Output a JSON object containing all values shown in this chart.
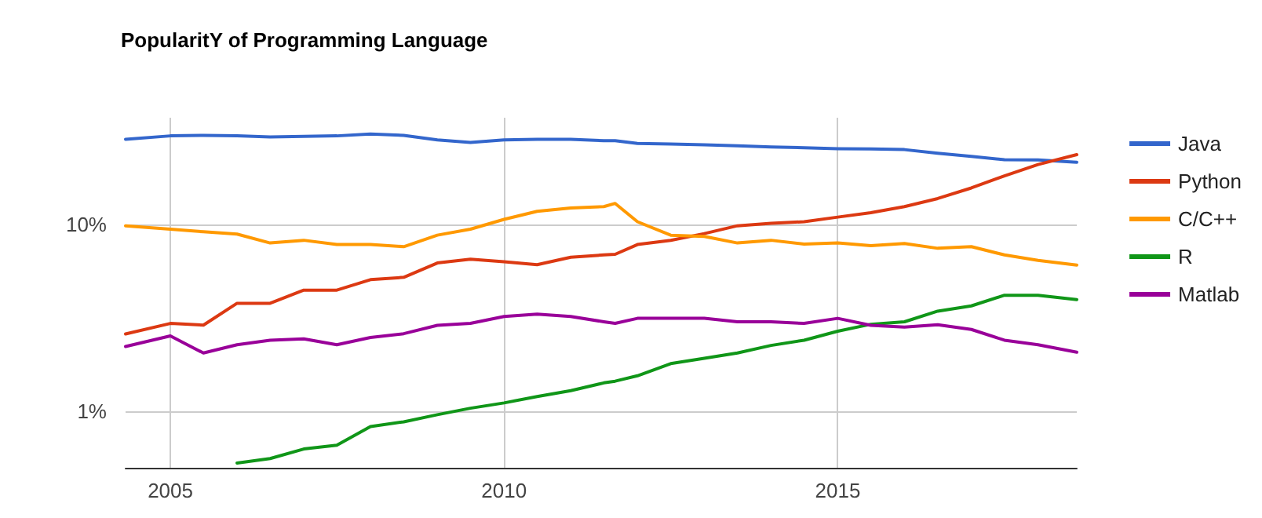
{
  "chart_data": {
    "type": "line",
    "title": "PopularitY of Programming Language",
    "x": [
      "2004-05",
      "2005-01",
      "2005-07",
      "2006-01",
      "2006-07",
      "2007-01",
      "2007-07",
      "2008-01",
      "2008-07",
      "2009-01",
      "2009-07",
      "2010-01",
      "2010-07",
      "2011-01",
      "2011-07",
      "2011-09",
      "2012-01",
      "2012-07",
      "2013-01",
      "2013-07",
      "2014-01",
      "2014-07",
      "2015-01",
      "2015-07",
      "2016-01",
      "2016-07",
      "2017-01",
      "2017-07",
      "2018-01",
      "2018-08"
    ],
    "series": [
      {
        "name": "Java",
        "color": "#3366cc",
        "values": [
          28.4,
          29.6,
          29.8,
          29.6,
          29.2,
          29.4,
          29.6,
          30.3,
          29.8,
          28.2,
          27.3,
          28.2,
          28.4,
          28.4,
          27.9,
          27.9,
          27.0,
          26.8,
          26.5,
          26.2,
          25.8,
          25.6,
          25.3,
          25.2,
          25.0,
          23.9,
          23.0,
          22.1,
          22.0,
          21.4
        ]
      },
      {
        "name": "Python",
        "color": "#dc3912",
        "values": [
          2.59,
          2.95,
          2.89,
          3.78,
          3.78,
          4.44,
          4.44,
          5.05,
          5.2,
          6.2,
          6.5,
          6.3,
          6.07,
          6.66,
          6.85,
          6.9,
          7.78,
          8.19,
          8.9,
          9.8,
          10.1,
          10.3,
          10.9,
          11.5,
          12.4,
          13.7,
          15.6,
          18.1,
          20.8,
          23.5
        ]
      },
      {
        "name": "C/C++",
        "color": "#ff9900",
        "values": [
          9.8,
          9.4,
          9.1,
          8.85,
          7.93,
          8.2,
          7.78,
          7.78,
          7.58,
          8.73,
          9.4,
          10.6,
          11.7,
          12.2,
          12.4,
          12.9,
          10.3,
          8.73,
          8.6,
          7.93,
          8.2,
          7.83,
          7.93,
          7.67,
          7.88,
          7.43,
          7.58,
          6.85,
          6.41,
          6.05
        ]
      },
      {
        "name": "R",
        "color": "#109618",
        "values": [
          null,
          null,
          null,
          0.53,
          0.56,
          0.63,
          0.66,
          0.83,
          0.88,
          0.96,
          1.04,
          1.11,
          1.2,
          1.29,
          1.42,
          1.45,
          1.55,
          1.8,
          1.92,
          2.05,
          2.25,
          2.4,
          2.68,
          2.92,
          3.01,
          3.43,
          3.66,
          4.17,
          4.17,
          3.95
        ]
      },
      {
        "name": "Matlab",
        "color": "#990099",
        "values": [
          2.22,
          2.53,
          2.05,
          2.27,
          2.4,
          2.44,
          2.27,
          2.48,
          2.6,
          2.88,
          2.95,
          3.21,
          3.31,
          3.21,
          3.01,
          2.95,
          3.14,
          3.14,
          3.14,
          3.01,
          3.01,
          2.95,
          3.14,
          2.88,
          2.82,
          2.9,
          2.74,
          2.4,
          2.27,
          2.07
        ]
      }
    ],
    "xlim": [
      "2004-05",
      "2018-08"
    ],
    "xticks": [
      "2005",
      "2010",
      "2015"
    ],
    "ylim": [
      0.5,
      37
    ],
    "yticks": [
      {
        "value": 1,
        "label": "1%"
      },
      {
        "value": 10,
        "label": "10%"
      }
    ],
    "log": "y",
    "grid": true,
    "legend": "right",
    "marker": "none",
    "line_style": "solid"
  }
}
